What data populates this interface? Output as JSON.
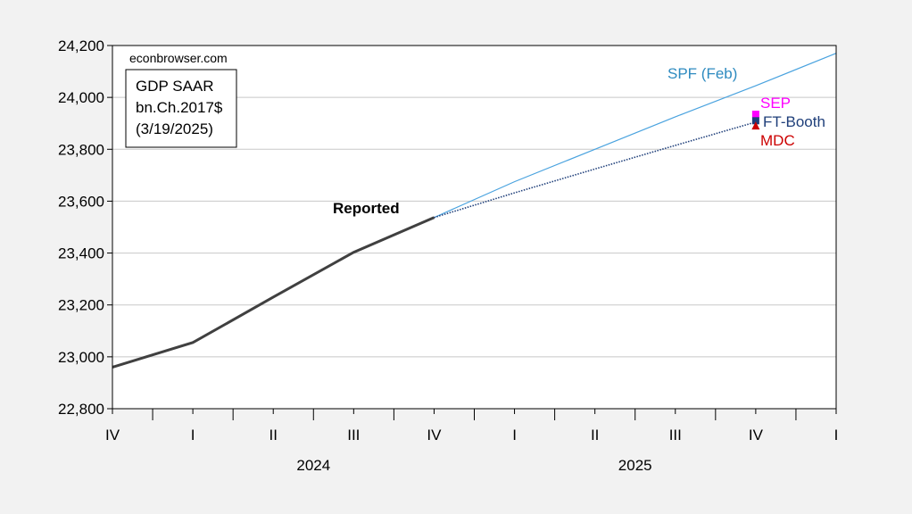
{
  "chart_data": {
    "type": "line",
    "source_note": "econbrowser.com",
    "info_box": [
      "GDP SAAR",
      "bn.Ch.2017$",
      "(3/19/2025)"
    ],
    "y_ticks": [
      "22,800",
      "23,000",
      "23,200",
      "23,400",
      "23,600",
      "23,800",
      "24,000",
      "24,200"
    ],
    "y_tick_values": [
      22800,
      23000,
      23200,
      23400,
      23600,
      23800,
      24000,
      24200
    ],
    "ylim": [
      22800,
      24200
    ],
    "x_tick_labels": [
      "IV",
      "I",
      "II",
      "III",
      "IV",
      "I",
      "II",
      "III",
      "IV",
      "I"
    ],
    "year_labels": [
      {
        "label": "2024",
        "center_index": 2.5
      },
      {
        "label": "2025",
        "center_index": 6.5
      }
    ],
    "grid": "horizontal",
    "series": [
      {
        "name": "Reported",
        "style": "solid",
        "color": "#404040",
        "points": [
          [
            0,
            22960
          ],
          [
            1,
            23055
          ],
          [
            2,
            23230
          ],
          [
            3,
            23403
          ],
          [
            4,
            23537
          ]
        ]
      },
      {
        "name": "SPF (Feb)",
        "style": "solid",
        "color": "#4aa3df",
        "points": [
          [
            4,
            23537
          ],
          [
            5,
            23675
          ],
          [
            6,
            23800
          ],
          [
            7,
            23925
          ],
          [
            8,
            24045
          ],
          [
            9,
            24170
          ]
        ]
      },
      {
        "name": "FT-Booth",
        "style": "dotted",
        "color": "#1f3f7a",
        "points": [
          [
            4,
            23537
          ],
          [
            5,
            23632
          ],
          [
            6,
            23724
          ],
          [
            7,
            23815
          ],
          [
            8,
            23905
          ]
        ]
      }
    ],
    "markers": [
      {
        "name": "SEP",
        "x": 8,
        "y": 23935,
        "shape": "square",
        "color": "#ff00ff"
      },
      {
        "name": "FT-Booth",
        "x": 8,
        "y": 23910,
        "shape": "square",
        "color": "#1f3f7a"
      },
      {
        "name": "MDC",
        "x": 8,
        "y": 23890,
        "shape": "triangle",
        "color": "#cc0000"
      }
    ],
    "annotations": [
      {
        "text": "SPF (Feb)",
        "color": "#2e8bc0"
      },
      {
        "text": "SEP",
        "color": "#ff00ff"
      },
      {
        "text": "FT-Booth",
        "color": "#1f3f7a"
      },
      {
        "text": "MDC",
        "color": "#cc0000"
      },
      {
        "text": "Reported",
        "color": "#000000"
      }
    ]
  }
}
